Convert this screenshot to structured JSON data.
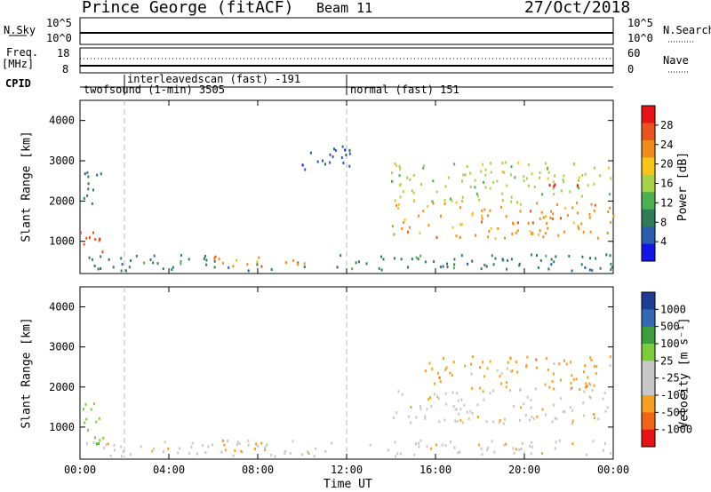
{
  "header": {
    "station": "Prince George (fitACF)",
    "beam": "Beam 11",
    "date": "27/Oct/2018"
  },
  "top_panels": {
    "nsky": {
      "label": "N.Sky",
      "ticks": [
        "10^5",
        "10^0"
      ]
    },
    "nsearch": {
      "label": "N.Search",
      "ticks": [
        "10^5",
        "10^0"
      ]
    },
    "freq": {
      "label": "Freq.",
      "unit": "[MHz]",
      "ticks": [
        "18",
        "8"
      ]
    },
    "nave": {
      "label": "Nave",
      "ticks": [
        "60",
        "0"
      ]
    },
    "cpid": {
      "label": "CPID",
      "segments": [
        {
          "name": "twofsound (1-min) 3505"
        },
        {
          "name": "interleavedscan (fast) -191"
        },
        {
          "name": "normal (fast) 151"
        }
      ]
    }
  },
  "colors": {
    "power": [
      "#1414e6",
      "#2a5cb0",
      "#2e7d5a",
      "#4caf50",
      "#a6d24a",
      "#f5c518",
      "#f08c1e",
      "#e8531e",
      "#e61414"
    ],
    "velocity": [
      "#e61414",
      "#f06418",
      "#f5a020",
      "#c8c8c8",
      "#c8c8c8",
      "#7ccd3c",
      "#3c9e3c",
      "#3268b4",
      "#1e3c96"
    ]
  },
  "chart_data": [
    {
      "type": "heatmap",
      "name": "power",
      "ylabel": "Slant Range [km]",
      "yticks": [
        1000,
        2000,
        3000,
        4000
      ],
      "ylim": [
        200,
        4500
      ],
      "xlim": [
        0,
        24
      ],
      "xtick_labels": [
        "00:00",
        "04:00",
        "08:00",
        "12:00",
        "16:00",
        "20:00",
        "00:00"
      ],
      "colorbar": {
        "label": "Power [dB]",
        "ticks": [
          "28",
          "24",
          "20",
          "16",
          "12",
          "8",
          "4"
        ]
      },
      "regions": [
        {
          "t0": 0.0,
          "t1": 1.2,
          "r0": 600,
          "r1": 1300,
          "level": 7
        },
        {
          "t0": 0.0,
          "t1": 1.0,
          "r0": 1800,
          "r1": 2800,
          "level": 2
        },
        {
          "t0": 0.0,
          "t1": 24.0,
          "r0": 300,
          "r1": 700,
          "level": 2
        },
        {
          "t0": 6.0,
          "t1": 11.0,
          "r0": 400,
          "r1": 650,
          "level": 6
        },
        {
          "t0": 9.5,
          "t1": 12.5,
          "r0": 2800,
          "r1": 3400,
          "level": 1
        },
        {
          "t0": 14.0,
          "t1": 24.0,
          "r0": 1100,
          "r1": 2000,
          "level": 6
        },
        {
          "t0": 14.0,
          "t1": 24.0,
          "r0": 2000,
          "r1": 3000,
          "level": 4
        },
        {
          "t0": 21.0,
          "t1": 22.5,
          "r0": 2250,
          "r1": 2500,
          "level": 8
        }
      ]
    },
    {
      "type": "heatmap",
      "name": "velocity",
      "xlabel": "Time UT",
      "ylabel": "Slant Range [km]",
      "yticks": [
        1000,
        2000,
        3000,
        4000
      ],
      "ylim": [
        200,
        4500
      ],
      "xlim": [
        0,
        24
      ],
      "xtick_labels": [
        "00:00",
        "04:00",
        "08:00",
        "12:00",
        "16:00",
        "20:00",
        "00:00"
      ],
      "colorbar": {
        "label": "Velocity [m s⁻¹]",
        "ticks": [
          "1000",
          "500",
          "100",
          "25",
          "-25",
          "-100",
          "-500",
          "-1000"
        ]
      },
      "regions": [
        {
          "t0": 0.0,
          "t1": 1.2,
          "r0": 600,
          "r1": 1700,
          "level": 5
        },
        {
          "t0": 0.0,
          "t1": 24.0,
          "r0": 300,
          "r1": 700,
          "level": 3
        },
        {
          "t0": 6.0,
          "t1": 9.0,
          "r0": 400,
          "r1": 650,
          "level": 2
        },
        {
          "t0": 15.5,
          "t1": 24.0,
          "r0": 2000,
          "r1": 2800,
          "level": 2
        },
        {
          "t0": 14.0,
          "t1": 24.0,
          "r0": 1100,
          "r1": 2000,
          "level": 3
        }
      ]
    }
  ]
}
